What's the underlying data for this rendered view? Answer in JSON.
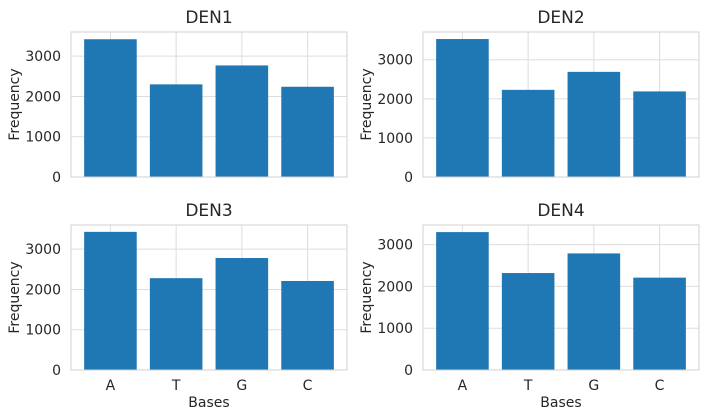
{
  "chart_data": [
    {
      "type": "bar",
      "title": "DEN1",
      "categories": [
        "A",
        "T",
        "G",
        "C"
      ],
      "values": [
        3420,
        2300,
        2770,
        2240
      ],
      "ylabel": "Frequency",
      "xlabel": "",
      "ylim": [
        0,
        3600
      ],
      "yticks": [
        0,
        1000,
        2000,
        3000
      ],
      "show_xticklabels": false,
      "grid": true,
      "color": "#1f77b4"
    },
    {
      "type": "bar",
      "title": "DEN2",
      "categories": [
        "A",
        "T",
        "G",
        "C"
      ],
      "values": [
        3530,
        2230,
        2690,
        2190
      ],
      "ylabel": "Frequency",
      "xlabel": "",
      "ylim": [
        0,
        3710
      ],
      "yticks": [
        0,
        1000,
        2000,
        3000
      ],
      "show_xticklabels": false,
      "grid": true,
      "color": "#1f77b4"
    },
    {
      "type": "bar",
      "title": "DEN3",
      "categories": [
        "A",
        "T",
        "G",
        "C"
      ],
      "values": [
        3430,
        2280,
        2780,
        2210
      ],
      "ylabel": "Frequency",
      "xlabel": "Bases",
      "ylim": [
        0,
        3600
      ],
      "yticks": [
        0,
        1000,
        2000,
        3000
      ],
      "show_xticklabels": true,
      "grid": true,
      "color": "#1f77b4"
    },
    {
      "type": "bar",
      "title": "DEN4",
      "categories": [
        "A",
        "T",
        "G",
        "C"
      ],
      "values": [
        3300,
        2320,
        2790,
        2210
      ],
      "ylabel": "Frequency",
      "xlabel": "Bases",
      "ylim": [
        0,
        3470
      ],
      "yticks": [
        0,
        1000,
        2000,
        3000
      ],
      "show_xticklabels": true,
      "grid": true,
      "color": "#1f77b4"
    }
  ]
}
